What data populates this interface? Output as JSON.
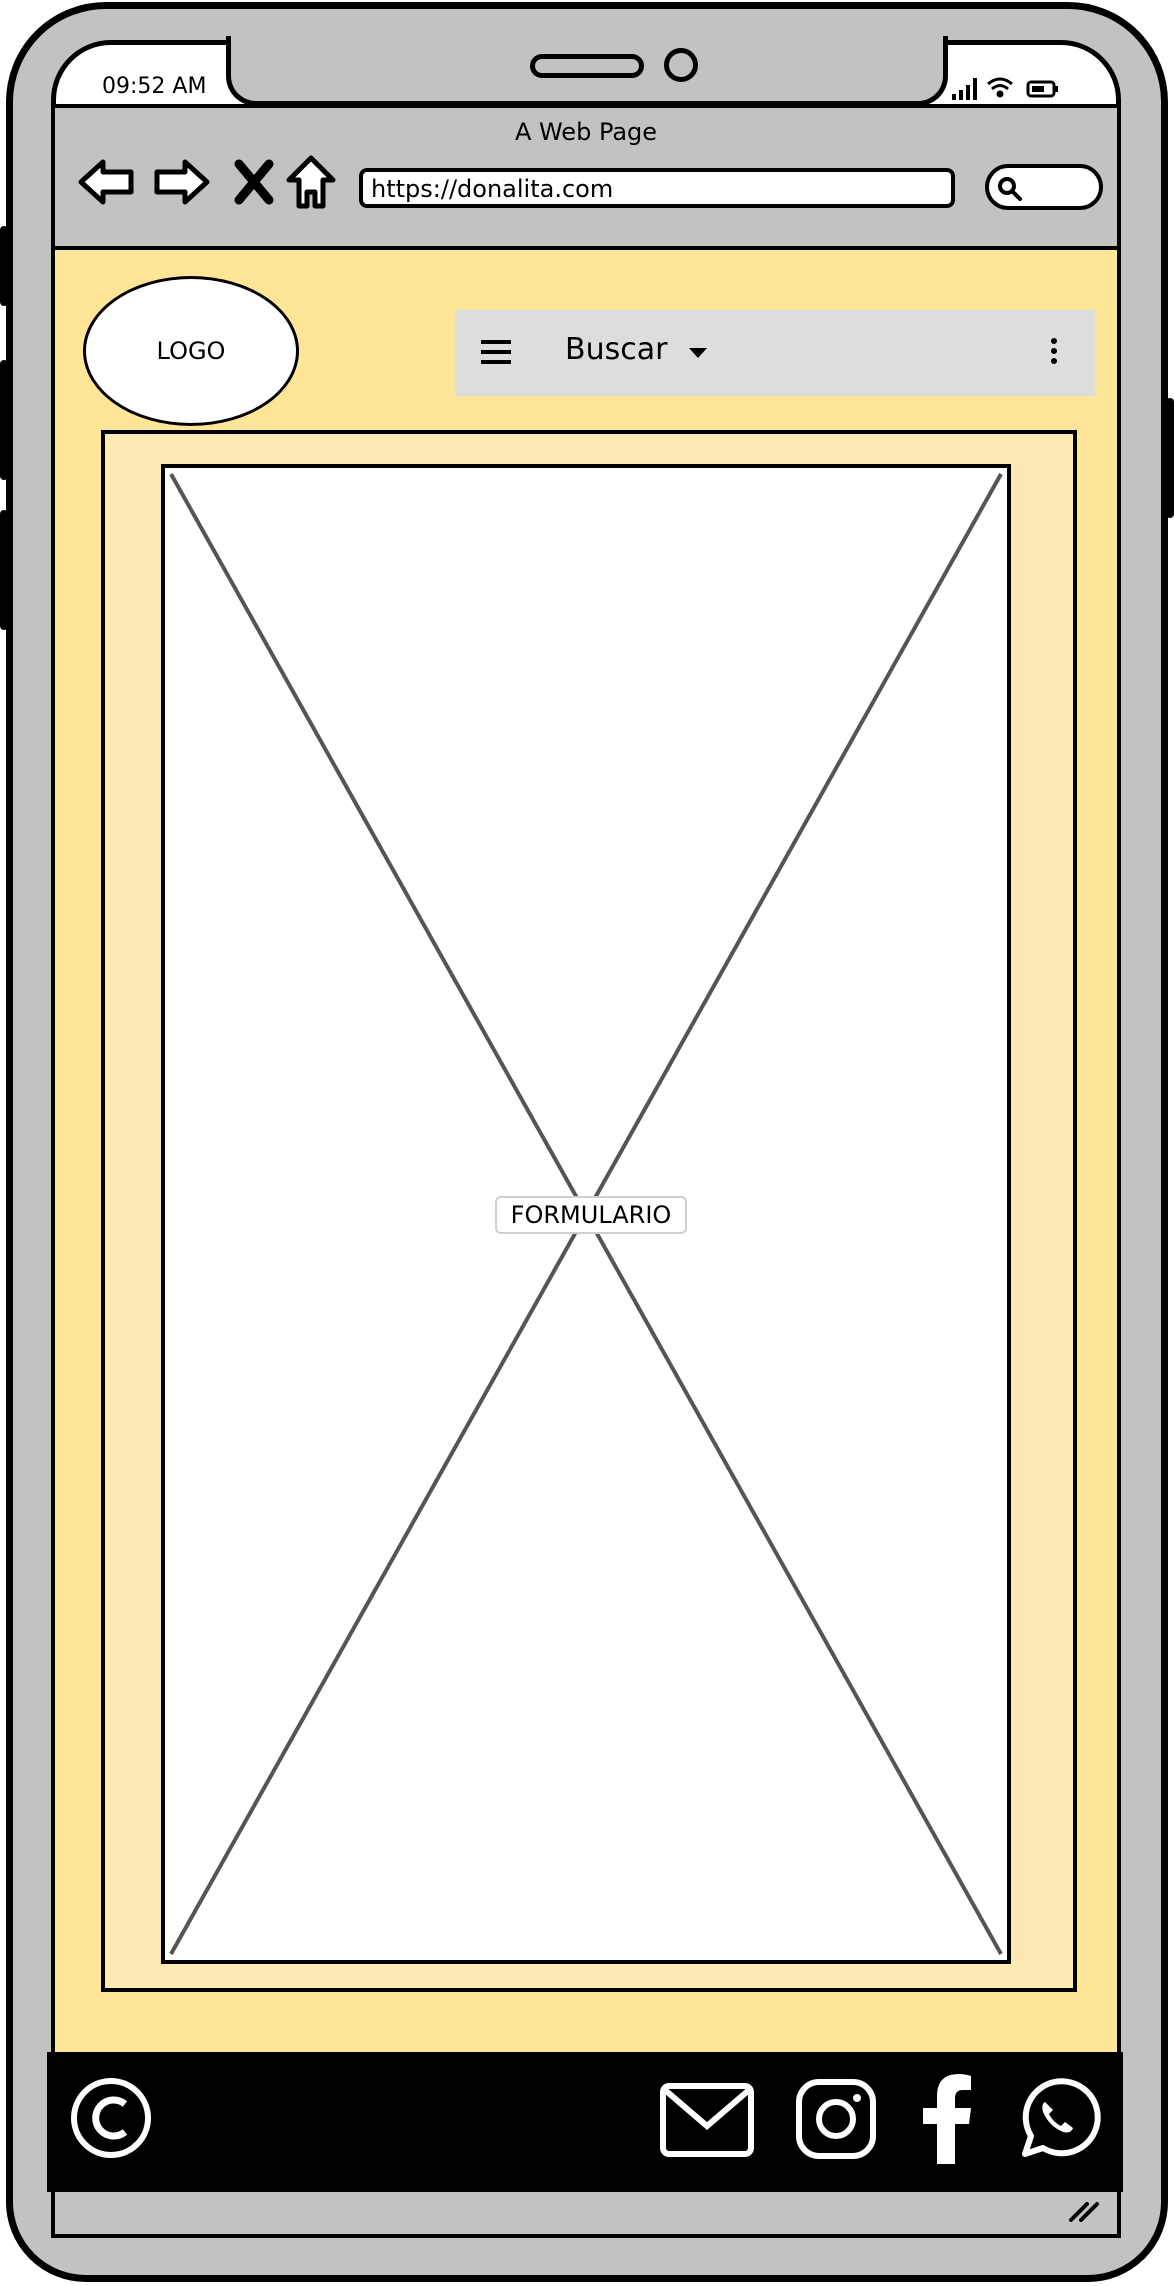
{
  "status_bar": {
    "time": "09:52 AM"
  },
  "browser": {
    "page_title": "A Web Page",
    "url": "https://donalita.com"
  },
  "header": {
    "logo_label": "LOGO",
    "menu_label": "Buscar"
  },
  "main": {
    "form_placeholder_label": "FORMULARIO"
  },
  "icons": {
    "back": "arrow-left-icon",
    "forward": "arrow-right-icon",
    "stop": "close-icon",
    "home": "home-icon",
    "search": "search-icon",
    "menu": "hamburger-icon",
    "dropdown": "caret-down-icon",
    "more": "kebab-icon",
    "copyright": "copyright-icon",
    "email": "email-icon",
    "instagram": "instagram-icon",
    "facebook": "facebook-icon",
    "whatsapp": "whatsapp-icon"
  },
  "colors": {
    "page_background": "#ffe597",
    "form_frame": "#fde9b4",
    "menu_bar": "#dddddd",
    "device_frame": "#c2c2c2",
    "footer": "#000000"
  }
}
